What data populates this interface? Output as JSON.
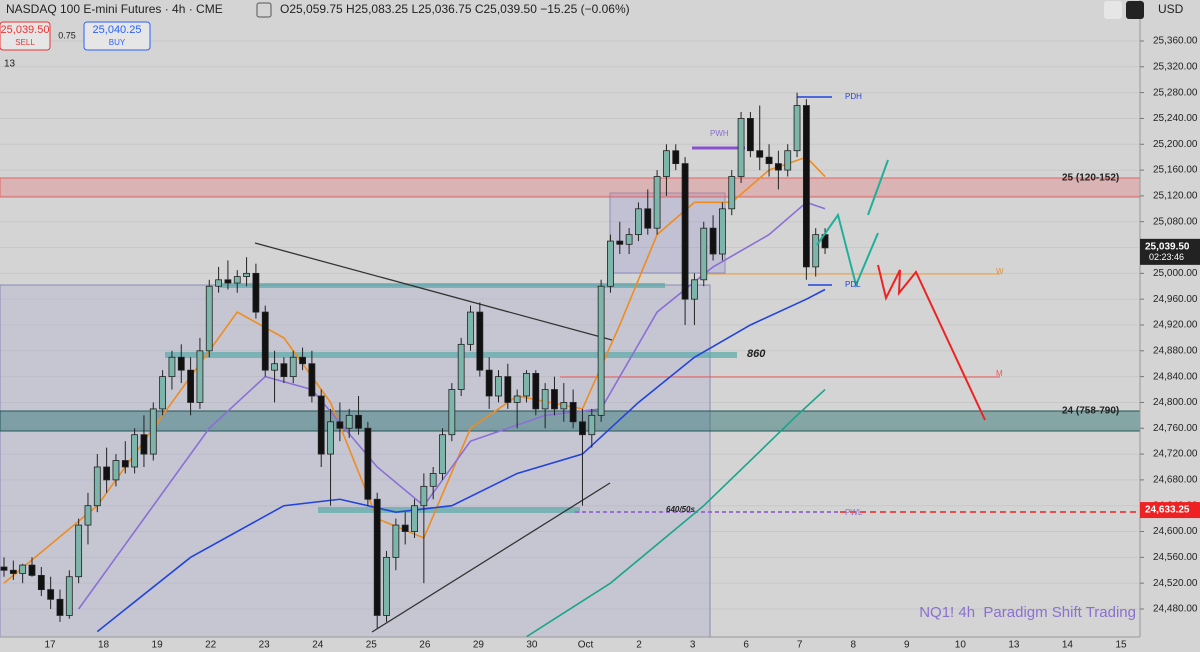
{
  "header": {
    "symbol": "NASDAQ 100 E-mini Futures · 4h · CME",
    "ohlc": "O25,059.75 H25,083.25 L25,036.75 C25,039.50 −15.25 (−0.06%)",
    "sell_price": "25,039.50",
    "sell": "SELL",
    "spread": "0.75",
    "buy_price": "25,040.25",
    "buy": "BUY",
    "indicator": "13",
    "currency": "USD"
  },
  "chart_data": {
    "type": "candlestick",
    "ylim": [
      24436.6,
      25423.5
    ],
    "yticks": [
      {
        "value": 24480,
        "label": "24,480.00"
      },
      {
        "value": 24520,
        "label": "24,520.00"
      },
      {
        "value": 24560,
        "label": "24,560.00"
      },
      {
        "value": 24600,
        "label": "24,600.00"
      },
      {
        "value": 24640,
        "label": "24,640.00"
      },
      {
        "value": 24680,
        "label": "24,680.00"
      },
      {
        "value": 24720,
        "label": "24,720.00"
      },
      {
        "value": 24760,
        "label": "24,760.00"
      },
      {
        "value": 24800,
        "label": "24,800.00"
      },
      {
        "value": 24840,
        "label": "24,840.00"
      },
      {
        "value": 24880,
        "label": "24,880.00"
      },
      {
        "value": 24920,
        "label": "24,920.00"
      },
      {
        "value": 24960,
        "label": "24,960.00"
      },
      {
        "value": 25000,
        "label": "25,000.00"
      },
      {
        "value": 25040,
        "label": "25,040.00"
      },
      {
        "value": 25080,
        "label": "25,080.00"
      },
      {
        "value": 25120,
        "label": "25,120.00"
      },
      {
        "value": 25160,
        "label": "25,160.00"
      },
      {
        "value": 25200,
        "label": "25,200.00"
      },
      {
        "value": 25240,
        "label": "25,240.00"
      },
      {
        "value": 25280,
        "label": "25,280.00"
      },
      {
        "value": 25320,
        "label": "25,320.00"
      },
      {
        "value": 25360,
        "label": "25,360.00"
      }
    ],
    "xlabels": [
      "17",
      "18",
      "19",
      "22",
      "23",
      "24",
      "25",
      "26",
      "29",
      "30",
      "Oct",
      "2",
      "3",
      "6",
      "7",
      "8",
      "9",
      "10",
      "13",
      "14",
      "15"
    ],
    "up_color": "#7db5aa",
    "down_color": "#111111",
    "candles": [
      [
        24545,
        24560,
        24530,
        24540
      ],
      [
        24540,
        24555,
        24525,
        24535
      ],
      [
        24535,
        24550,
        24520,
        24548
      ],
      [
        24548,
        24560,
        24530,
        24532
      ],
      [
        24532,
        24545,
        24500,
        24510
      ],
      [
        24510,
        24530,
        24480,
        24495
      ],
      [
        24495,
        24510,
        24460,
        24470
      ],
      [
        24470,
        24540,
        24465,
        24530
      ],
      [
        24530,
        24620,
        24520,
        24610
      ],
      [
        24610,
        24660,
        24580,
        24640
      ],
      [
        24640,
        24720,
        24630,
        24700
      ],
      [
        24700,
        24730,
        24660,
        24680
      ],
      [
        24680,
        24720,
        24670,
        24710
      ],
      [
        24710,
        24740,
        24690,
        24700
      ],
      [
        24700,
        24760,
        24690,
        24750
      ],
      [
        24750,
        24780,
        24700,
        24720
      ],
      [
        24720,
        24800,
        24710,
        24790
      ],
      [
        24790,
        24850,
        24780,
        24840
      ],
      [
        24840,
        24880,
        24820,
        24870
      ],
      [
        24870,
        24890,
        24830,
        24850
      ],
      [
        24850,
        24870,
        24780,
        24800
      ],
      [
        24800,
        24900,
        24790,
        24880
      ],
      [
        24880,
        24990,
        24870,
        24980
      ],
      [
        24980,
        25010,
        24970,
        24990
      ],
      [
        24990,
        25020,
        24975,
        24985
      ],
      [
        24985,
        25005,
        24970,
        24995
      ],
      [
        24995,
        25025,
        24980,
        25000
      ],
      [
        25000,
        25015,
        24930,
        24940
      ],
      [
        24940,
        24950,
        24840,
        24850
      ],
      [
        24850,
        24880,
        24800,
        24860
      ],
      [
        24860,
        24870,
        24830,
        24840
      ],
      [
        24840,
        24880,
        24830,
        24870
      ],
      [
        24870,
        24885,
        24850,
        24860
      ],
      [
        24860,
        24880,
        24800,
        24810
      ],
      [
        24810,
        24820,
        24700,
        24720
      ],
      [
        24720,
        24790,
        24640,
        24770
      ],
      [
        24770,
        24800,
        24740,
        24760
      ],
      [
        24760,
        24790,
        24745,
        24780
      ],
      [
        24780,
        24810,
        24750,
        24760
      ],
      [
        24760,
        24770,
        24640,
        24650
      ],
      [
        24650,
        24660,
        24450,
        24470
      ],
      [
        24470,
        24570,
        24460,
        24560
      ],
      [
        24560,
        24620,
        24540,
        24610
      ],
      [
        24610,
        24630,
        24580,
        24600
      ],
      [
        24600,
        24650,
        24590,
        24640
      ],
      [
        24640,
        24690,
        24520,
        24670
      ],
      [
        24670,
        24700,
        24650,
        24690
      ],
      [
        24690,
        24760,
        24680,
        24750
      ],
      [
        24750,
        24830,
        24740,
        24820
      ],
      [
        24820,
        24900,
        24810,
        24890
      ],
      [
        24890,
        24950,
        24880,
        24940
      ],
      [
        24940,
        24955,
        24840,
        24850
      ],
      [
        24850,
        24870,
        24790,
        24810
      ],
      [
        24810,
        24850,
        24800,
        24840
      ],
      [
        24840,
        24860,
        24790,
        24800
      ],
      [
        24800,
        24820,
        24760,
        24810
      ],
      [
        24810,
        24850,
        24800,
        24845
      ],
      [
        24845,
        24850,
        24780,
        24790
      ],
      [
        24790,
        24830,
        24760,
        24820
      ],
      [
        24820,
        24840,
        24780,
        24790
      ],
      [
        24790,
        24830,
        24770,
        24800
      ],
      [
        24800,
        24820,
        24760,
        24770
      ],
      [
        24770,
        24790,
        24640,
        24750
      ],
      [
        24750,
        24790,
        24730,
        24780
      ],
      [
        24780,
        24990,
        24770,
        24980
      ],
      [
        24980,
        25060,
        24970,
        25050
      ],
      [
        25050,
        25080,
        25030,
        25045
      ],
      [
        25045,
        25070,
        25030,
        25060
      ],
      [
        25060,
        25110,
        25050,
        25100
      ],
      [
        25100,
        25130,
        25060,
        25070
      ],
      [
        25070,
        25160,
        25060,
        25150
      ],
      [
        25150,
        25200,
        25120,
        25190
      ],
      [
        25190,
        25200,
        25160,
        25170
      ],
      [
        25170,
        25180,
        24920,
        24960
      ],
      [
        24960,
        25000,
        24920,
        24990
      ],
      [
        24990,
        25080,
        24980,
        25070
      ],
      [
        25070,
        25090,
        25020,
        25030
      ],
      [
        25030,
        25110,
        25020,
        25100
      ],
      [
        25100,
        25160,
        25090,
        25150
      ],
      [
        25150,
        25250,
        25140,
        25240
      ],
      [
        25240,
        25250,
        25180,
        25190
      ],
      [
        25190,
        25260,
        25160,
        25180
      ],
      [
        25180,
        25200,
        25150,
        25170
      ],
      [
        25170,
        25190,
        25130,
        25160
      ],
      [
        25160,
        25200,
        25150,
        25190
      ],
      [
        25190,
        25280,
        25180,
        25260
      ],
      [
        25260,
        25270,
        24990,
        25010
      ],
      [
        25010,
        25070,
        24995,
        25060
      ],
      [
        25060,
        25070,
        25030,
        25039.5
      ]
    ],
    "series": [
      {
        "color": "#f08c1e",
        "x": [
          0,
          10,
          18,
          25,
          30,
          35,
          40,
          45,
          50,
          55,
          62,
          66,
          70,
          74,
          78,
          82,
          86,
          88
        ],
        "values": [
          24520,
          24640,
          24800,
          24940,
          24900,
          24800,
          24620,
          24590,
          24760,
          24810,
          24790,
          24920,
          25060,
          25110,
          25110,
          25160,
          25180,
          25150
        ]
      },
      {
        "color": "#8a6fd6",
        "x": [
          8,
          15,
          22,
          28,
          33,
          40,
          45,
          50,
          58,
          64,
          70,
          76,
          82,
          86,
          88
        ],
        "values": [
          24480,
          24620,
          24760,
          24840,
          24820,
          24700,
          24640,
          24740,
          24780,
          24790,
          24940,
          25010,
          25060,
          25110,
          25100
        ]
      },
      {
        "color": "#2244dd",
        "x": [
          10,
          20,
          30,
          36,
          42,
          48,
          55,
          62,
          68,
          74,
          80,
          86,
          88
        ],
        "values": [
          24445,
          24560,
          24640,
          24650,
          24630,
          24640,
          24690,
          24720,
          24800,
          24870,
          24920,
          24960,
          24975
        ]
      },
      {
        "color": "#1aa58a",
        "x": [
          56,
          65,
          75,
          85,
          88
        ],
        "values": [
          24437,
          24520,
          24640,
          24780,
          24820
        ]
      }
    ],
    "last_price": {
      "value": 25039.5,
      "label": "25,039.50"
    },
    "countdown": "02:23:46",
    "pwl_price": {
      "value": 24633.25,
      "label": "24,633.25"
    },
    "annotations": [
      "PDH",
      "PWH",
      "PDL",
      "PWL",
      "W",
      "M",
      "860",
      "640/50s",
      "25 (120-152)",
      "24 (758-790)",
      "NQ1! 4h  Paradigm Shift Trading"
    ]
  }
}
